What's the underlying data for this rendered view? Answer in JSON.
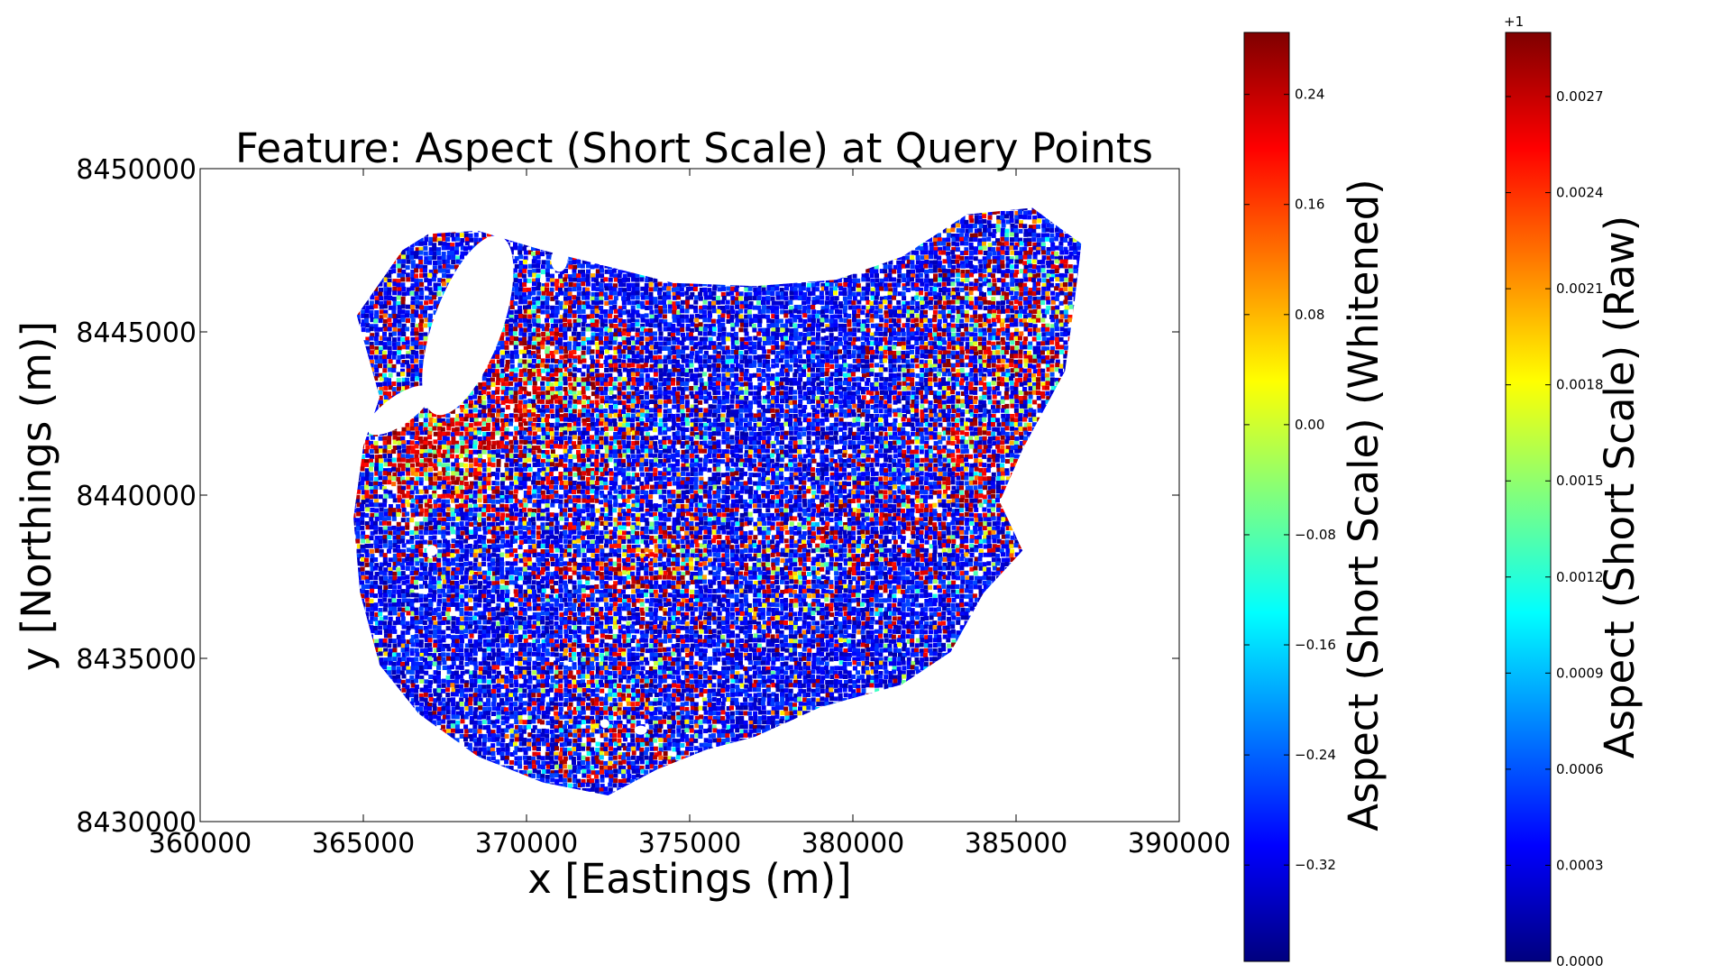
{
  "chart_data": {
    "type": "scatter",
    "title": "Feature: Aspect (Short Scale) at Query Points",
    "xlabel": "x [Eastings (m)]",
    "ylabel": "y [Northings (m)]",
    "xlim": [
      360000,
      390000
    ],
    "ylim": [
      8430000,
      8450000
    ],
    "x_ticks": [
      "360000",
      "365000",
      "370000",
      "375000",
      "380000",
      "385000",
      "390000"
    ],
    "y_ticks": [
      "8430000",
      "8435000",
      "8440000",
      "8445000",
      "8450000"
    ],
    "x_tick_values": [
      360000,
      365000,
      370000,
      375000,
      380000,
      385000,
      390000
    ],
    "y_tick_values": [
      8430000,
      8435000,
      8440000,
      8445000,
      8450000
    ],
    "colormap": "jet",
    "colormap_stops": [
      "#00007f",
      "#0000ff",
      "#007fff",
      "#00ffff",
      "#7fff7f",
      "#ffff00",
      "#ff7f00",
      "#ff0000",
      "#7f0000"
    ],
    "region_outline": [
      [
        364800,
        8445500
      ],
      [
        365500,
        8446500
      ],
      [
        366200,
        8447500
      ],
      [
        367000,
        8448000
      ],
      [
        368500,
        8448100
      ],
      [
        370500,
        8447500
      ],
      [
        372500,
        8447000
      ],
      [
        374500,
        8446500
      ],
      [
        377000,
        8446400
      ],
      [
        379500,
        8446600
      ],
      [
        381500,
        8447300
      ],
      [
        383500,
        8448600
      ],
      [
        385500,
        8448800
      ],
      [
        387000,
        8447700
      ],
      [
        386800,
        8446000
      ],
      [
        386500,
        8443800
      ],
      [
        385200,
        8441400
      ],
      [
        384500,
        8439800
      ],
      [
        385200,
        8438300
      ],
      [
        384000,
        8437000
      ],
      [
        383000,
        8435200
      ],
      [
        381500,
        8434200
      ],
      [
        379000,
        8433500
      ],
      [
        377000,
        8432600
      ],
      [
        375500,
        8432200
      ],
      [
        374000,
        8431600
      ],
      [
        372500,
        8430800
      ],
      [
        370500,
        8431200
      ],
      [
        368500,
        8432000
      ],
      [
        366700,
        8433300
      ],
      [
        365500,
        8434800
      ],
      [
        364900,
        8437000
      ],
      [
        364700,
        8439300
      ],
      [
        365000,
        8441500
      ],
      [
        365500,
        8443000
      ]
    ],
    "colorbars": [
      {
        "label": "Aspect (Short Scale) (Whitened)",
        "range": [
          -0.39,
          0.285
        ],
        "tick_values": [
          -0.32,
          -0.24,
          -0.16,
          -0.08,
          0.0,
          0.08,
          0.16,
          0.24
        ],
        "tick_labels": [
          "−0.32",
          "−0.24",
          "−0.16",
          "−0.08",
          "0.00",
          "0.08",
          "0.16",
          "0.24"
        ]
      },
      {
        "label": "Aspect (Short Scale) (Raw)",
        "offset_text": "+1",
        "range": [
          0.0,
          0.0029
        ],
        "tick_values": [
          0.0,
          0.0003,
          0.0006,
          0.0009,
          0.0012,
          0.0015,
          0.0018,
          0.0021,
          0.0024,
          0.0027
        ],
        "tick_labels": [
          "0.0000",
          "0.0003",
          "0.0006",
          "0.0009",
          "0.0012",
          "0.0015",
          "0.0018",
          "0.0021",
          "0.0024",
          "0.0027"
        ]
      }
    ]
  }
}
